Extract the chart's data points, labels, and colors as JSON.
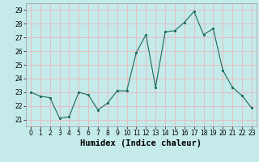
{
  "xlabel": "Humidex (Indice chaleur)",
  "x": [
    0,
    1,
    2,
    3,
    4,
    5,
    6,
    7,
    8,
    9,
    10,
    11,
    12,
    13,
    14,
    15,
    16,
    17,
    18,
    19,
    20,
    21,
    22,
    23
  ],
  "y": [
    23.0,
    22.7,
    22.6,
    21.1,
    21.2,
    23.0,
    22.8,
    21.7,
    22.2,
    23.1,
    23.1,
    25.9,
    27.2,
    23.35,
    27.4,
    27.5,
    28.1,
    28.9,
    27.2,
    27.65,
    24.6,
    23.35,
    22.75,
    21.85
  ],
  "background_color": "#c5eaea",
  "grid_color": "#e8b8b8",
  "line_color": "#1a6b5a",
  "marker_color": "#1a6b5a",
  "ylim": [
    20.5,
    29.5
  ],
  "yticks": [
    21,
    22,
    23,
    24,
    25,
    26,
    27,
    28,
    29
  ],
  "xticks": [
    0,
    1,
    2,
    3,
    4,
    5,
    6,
    7,
    8,
    9,
    10,
    11,
    12,
    13,
    14,
    15,
    16,
    17,
    18,
    19,
    20,
    21,
    22,
    23
  ],
  "tick_fontsize": 5.5,
  "xlabel_fontsize": 7.5,
  "xlim": [
    -0.5,
    23.5
  ]
}
